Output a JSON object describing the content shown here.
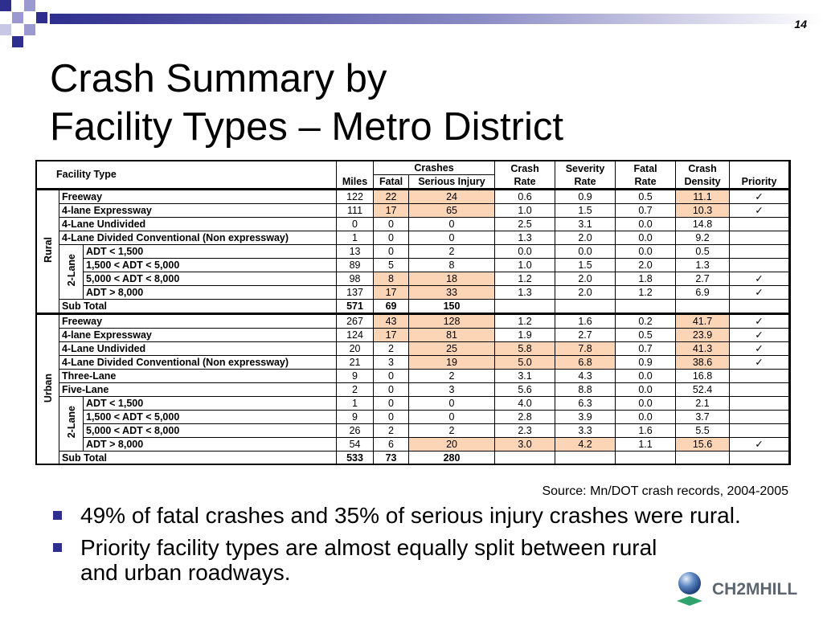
{
  "slide_number": "14",
  "title_line1": "Crash Summary by",
  "title_line2": "Facility Types – Metro District",
  "table": {
    "header": {
      "facility_type": "Facility Type",
      "miles": "Miles",
      "crashes": "Crashes",
      "fatal": "Fatal",
      "serious_injury": "Serious Injury",
      "crash_rate_1": "Crash",
      "crash_rate_2": "Rate",
      "severity_rate_1": "Severity",
      "severity_rate_2": "Rate",
      "fatal_rate_1": "Fatal",
      "fatal_rate_2": "Rate",
      "crash_density_1": "Crash",
      "crash_density_2": "Density",
      "priority": "Priority"
    },
    "group_rural": "Rural",
    "group_urban": "Urban",
    "sub_two_lane": "2-Lane",
    "check": "✓",
    "rural": [
      {
        "facility": "Freeway",
        "miles": "122",
        "fatal": "22",
        "serious": "24",
        "crash_rate": "0.6",
        "severity_rate": "0.9",
        "fatal_rate": "0.5",
        "density": "11.1",
        "priority": "✓"
      },
      {
        "facility": "4-lane Expressway",
        "miles": "111",
        "fatal": "17",
        "serious": "65",
        "crash_rate": "1.0",
        "severity_rate": "1.5",
        "fatal_rate": "0.7",
        "density": "10.3",
        "priority": "✓"
      },
      {
        "facility": "4-Lane Undivided",
        "miles": "0",
        "fatal": "0",
        "serious": "0",
        "crash_rate": "2.5",
        "severity_rate": "3.1",
        "fatal_rate": "0.0",
        "density": "14.8",
        "priority": ""
      },
      {
        "facility": "4-Lane Divided Conventional (Non expressway)",
        "miles": "1",
        "fatal": "0",
        "serious": "0",
        "crash_rate": "1.3",
        "severity_rate": "2.0",
        "fatal_rate": "0.0",
        "density": "9.2",
        "priority": ""
      },
      {
        "facility": "ADT < 1,500",
        "miles": "13",
        "fatal": "0",
        "serious": "2",
        "crash_rate": "0.0",
        "severity_rate": "0.0",
        "fatal_rate": "0.0",
        "density": "0.5",
        "priority": ""
      },
      {
        "facility": "1,500 < ADT < 5,000",
        "miles": "89",
        "fatal": "5",
        "serious": "8",
        "crash_rate": "1.0",
        "severity_rate": "1.5",
        "fatal_rate": "2.0",
        "density": "1.3",
        "priority": ""
      },
      {
        "facility": "5,000 < ADT < 8,000",
        "miles": "98",
        "fatal": "8",
        "serious": "18",
        "crash_rate": "1.2",
        "severity_rate": "2.0",
        "fatal_rate": "1.8",
        "density": "2.7",
        "priority": "✓"
      },
      {
        "facility": "ADT > 8,000",
        "miles": "137",
        "fatal": "17",
        "serious": "33",
        "crash_rate": "1.3",
        "severity_rate": "2.0",
        "fatal_rate": "1.2",
        "density": "6.9",
        "priority": "✓"
      }
    ],
    "rural_subtotal": {
      "label": "Sub Total",
      "miles": "571",
      "fatal": "69",
      "serious": "150"
    },
    "urban": [
      {
        "facility": "Freeway",
        "miles": "267",
        "fatal": "43",
        "serious": "128",
        "crash_rate": "1.2",
        "severity_rate": "1.6",
        "fatal_rate": "0.2",
        "density": "41.7",
        "priority": "✓"
      },
      {
        "facility": "4-lane Expressway",
        "miles": "124",
        "fatal": "17",
        "serious": "81",
        "crash_rate": "1.9",
        "severity_rate": "2.7",
        "fatal_rate": "0.5",
        "density": "23.9",
        "priority": "✓"
      },
      {
        "facility": "4-Lane Undivided",
        "miles": "20",
        "fatal": "2",
        "serious": "25",
        "crash_rate": "5.8",
        "severity_rate": "7.8",
        "fatal_rate": "0.7",
        "density": "41.3",
        "priority": "✓"
      },
      {
        "facility": "4-Lane Divided Conventional (Non expressway)",
        "miles": "21",
        "fatal": "3",
        "serious": "19",
        "crash_rate": "5.0",
        "severity_rate": "6.8",
        "fatal_rate": "0.9",
        "density": "38.6",
        "priority": "✓"
      },
      {
        "facility": "Three-Lane",
        "miles": "9",
        "fatal": "0",
        "serious": "2",
        "crash_rate": "3.1",
        "severity_rate": "4.3",
        "fatal_rate": "0.0",
        "density": "16.8",
        "priority": ""
      },
      {
        "facility": "Five-Lane",
        "miles": "2",
        "fatal": "0",
        "serious": "3",
        "crash_rate": "5.6",
        "severity_rate": "8.8",
        "fatal_rate": "0.0",
        "density": "52.4",
        "priority": ""
      },
      {
        "facility": "ADT < 1,500",
        "miles": "1",
        "fatal": "0",
        "serious": "0",
        "crash_rate": "4.0",
        "severity_rate": "6.3",
        "fatal_rate": "0.0",
        "density": "2.1",
        "priority": ""
      },
      {
        "facility": "1,500 < ADT < 5,000",
        "miles": "9",
        "fatal": "0",
        "serious": "0",
        "crash_rate": "2.8",
        "severity_rate": "3.9",
        "fatal_rate": "0.0",
        "density": "3.7",
        "priority": ""
      },
      {
        "facility": "5,000 < ADT < 8,000",
        "miles": "26",
        "fatal": "2",
        "serious": "2",
        "crash_rate": "2.3",
        "severity_rate": "3.3",
        "fatal_rate": "1.6",
        "density": "5.5",
        "priority": ""
      },
      {
        "facility": "ADT > 8,000",
        "miles": "54",
        "fatal": "6",
        "serious": "20",
        "crash_rate": "3.0",
        "severity_rate": "4.2",
        "fatal_rate": "1.1",
        "density": "15.6",
        "priority": "✓"
      }
    ],
    "urban_subtotal": {
      "label": "Sub Total",
      "miles": "533",
      "fatal": "73",
      "serious": "280"
    }
  },
  "source": "Source: Mn/DOT crash records, 2004-2005",
  "bullets": [
    "49% of fatal crashes and 35% of serious injury crashes were rural.",
    "Priority facility types are almost equally split between rural and urban roadways."
  ],
  "logo_text": "CH2MHILL",
  "colors": {
    "highlight": "#fbd5b5",
    "bullet": "#2e2e8f",
    "deco_blue": "#2e2e8f"
  }
}
